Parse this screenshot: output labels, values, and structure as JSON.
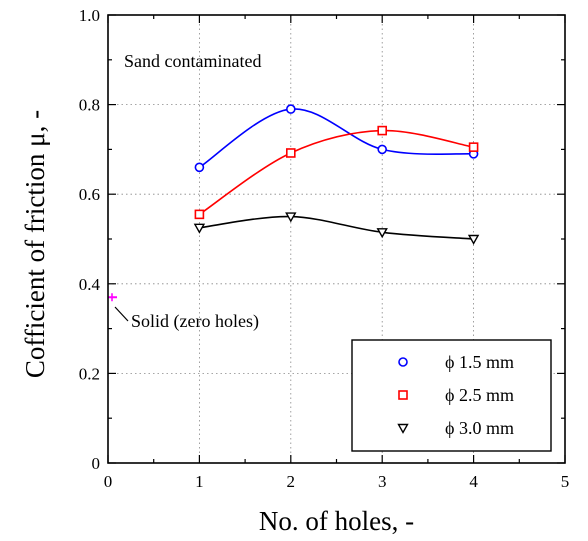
{
  "chart_data": {
    "type": "line",
    "xlabel": "No. of holes, -",
    "ylabel": "Cofficient of friction μ, -",
    "xlim": [
      0,
      5
    ],
    "ylim": [
      0,
      1.0
    ],
    "xticks": [
      "0",
      "1",
      "2",
      "3",
      "4",
      "5"
    ],
    "yticks": [
      "0",
      "0.2",
      "0.4",
      "0.6",
      "0.8",
      "1.0"
    ],
    "grid": true,
    "legend_position": "bottom-right",
    "series": [
      {
        "name": "ϕ 1.5 mm",
        "color": "#0000ff",
        "marker": "circle",
        "x": [
          1,
          2,
          3,
          4
        ],
        "y": [
          0.66,
          0.79,
          0.7,
          0.69
        ]
      },
      {
        "name": "ϕ 2.5 mm",
        "color": "#ff0000",
        "marker": "square",
        "x": [
          1,
          2,
          3,
          4
        ],
        "y": [
          0.555,
          0.692,
          0.742,
          0.705
        ]
      },
      {
        "name": "ϕ 3.0 mm",
        "color": "#000000",
        "marker": "triangle-down",
        "x": [
          1,
          2,
          3,
          4
        ],
        "y": [
          0.525,
          0.55,
          0.515,
          0.5
        ]
      }
    ],
    "reference_point": {
      "x": 0,
      "y": 0.37,
      "color": "#ff00ff"
    },
    "annotations": [
      {
        "text": "Sand contaminated"
      },
      {
        "text": "Solid (zero holes)"
      }
    ]
  }
}
